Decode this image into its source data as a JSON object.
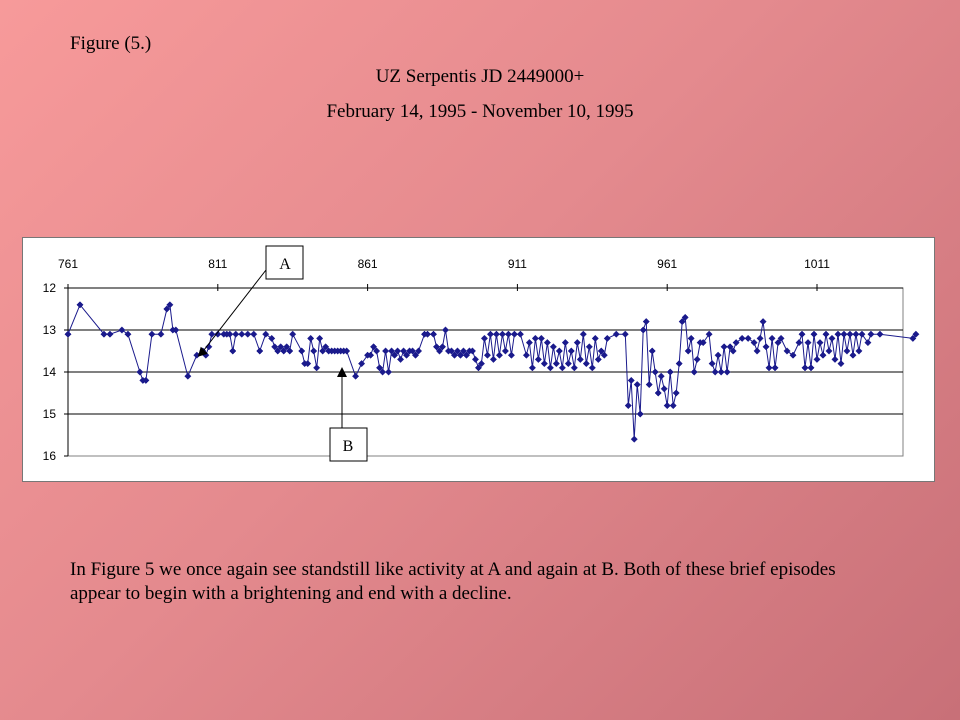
{
  "figure_label": "Figure (5.)",
  "title_line1": "UZ Serpentis JD 2449000+",
  "title_line2": "February 14, 1995 - November 10, 1995",
  "caption": "In Figure 5 we once again see standstill like activity at A and again at B. Both of these brief episodes appear to begin with a brightening and end with a decline.",
  "annotations": [
    {
      "label": "A",
      "points_to": {
        "x": 811,
        "y": 13.4
      }
    },
    {
      "label": "B",
      "points_to": {
        "x": 851,
        "y": 13.9
      }
    }
  ],
  "colors": {
    "series": "#1a1a8c",
    "background": "#f79a9a"
  },
  "chart_data": {
    "type": "scatter",
    "title": "UZ Serpentis JD 2449000+",
    "x_ticks": [
      761,
      811,
      861,
      911,
      961,
      1011
    ],
    "y_ticks": [
      12,
      13,
      14,
      15,
      16
    ],
    "xlim": [
      761,
      1031
    ],
    "ylim": [
      12,
      16
    ],
    "y_reversed": true,
    "grid": "horizontal",
    "x_axis_position": "top",
    "series": [
      {
        "marker": "diamond",
        "line": true,
        "points": [
          [
            761,
            13.1
          ],
          [
            765,
            12.4
          ],
          [
            773,
            13.1
          ],
          [
            775,
            13.1
          ],
          [
            779,
            13.0
          ],
          [
            781,
            13.1
          ],
          [
            785,
            14.0
          ],
          [
            786,
            14.2
          ],
          [
            787,
            14.2
          ],
          [
            789,
            13.1
          ],
          [
            792,
            13.1
          ],
          [
            794,
            12.5
          ],
          [
            795,
            12.4
          ],
          [
            796,
            13.0
          ],
          [
            797,
            13.0
          ],
          [
            801,
            14.1
          ],
          [
            804,
            13.6
          ],
          [
            806,
            13.5
          ],
          [
            807,
            13.6
          ],
          [
            808,
            13.4
          ],
          [
            809,
            13.1
          ],
          [
            811,
            13.1
          ],
          [
            813,
            13.1
          ],
          [
            814,
            13.1
          ],
          [
            815,
            13.1
          ],
          [
            816,
            13.5
          ],
          [
            817,
            13.1
          ],
          [
            819,
            13.1
          ],
          [
            821,
            13.1
          ],
          [
            823,
            13.1
          ],
          [
            825,
            13.5
          ],
          [
            827,
            13.1
          ],
          [
            829,
            13.2
          ],
          [
            830,
            13.4
          ],
          [
            831,
            13.5
          ],
          [
            832,
            13.4
          ],
          [
            833,
            13.5
          ],
          [
            834,
            13.4
          ],
          [
            835,
            13.5
          ],
          [
            836,
            13.1
          ],
          [
            839,
            13.5
          ],
          [
            840,
            13.8
          ],
          [
            841,
            13.8
          ],
          [
            842,
            13.2
          ],
          [
            843,
            13.5
          ],
          [
            844,
            13.9
          ],
          [
            845,
            13.2
          ],
          [
            846,
            13.5
          ],
          [
            847,
            13.4
          ],
          [
            848,
            13.5
          ],
          [
            849,
            13.5
          ],
          [
            850,
            13.5
          ],
          [
            851,
            13.5
          ],
          [
            852,
            13.5
          ],
          [
            853,
            13.5
          ],
          [
            854,
            13.5
          ],
          [
            857,
            14.1
          ],
          [
            859,
            13.8
          ],
          [
            861,
            13.6
          ],
          [
            862,
            13.6
          ],
          [
            863,
            13.4
          ],
          [
            864,
            13.5
          ],
          [
            865,
            13.9
          ],
          [
            866,
            14.0
          ],
          [
            867,
            13.5
          ],
          [
            868,
            14.0
          ],
          [
            869,
            13.5
          ],
          [
            870,
            13.6
          ],
          [
            871,
            13.5
          ],
          [
            872,
            13.7
          ],
          [
            873,
            13.5
          ],
          [
            874,
            13.6
          ],
          [
            875,
            13.5
          ],
          [
            876,
            13.5
          ],
          [
            877,
            13.6
          ],
          [
            878,
            13.5
          ],
          [
            880,
            13.1
          ],
          [
            881,
            13.1
          ],
          [
            883,
            13.1
          ],
          [
            884,
            13.4
          ],
          [
            885,
            13.5
          ],
          [
            886,
            13.4
          ],
          [
            887,
            13.0
          ],
          [
            888,
            13.5
          ],
          [
            889,
            13.5
          ],
          [
            890,
            13.6
          ],
          [
            891,
            13.5
          ],
          [
            892,
            13.6
          ],
          [
            893,
            13.5
          ],
          [
            894,
            13.6
          ],
          [
            895,
            13.5
          ],
          [
            896,
            13.5
          ],
          [
            897,
            13.7
          ],
          [
            898,
            13.9
          ],
          [
            899,
            13.8
          ],
          [
            900,
            13.2
          ],
          [
            901,
            13.6
          ],
          [
            902,
            13.1
          ],
          [
            903,
            13.7
          ],
          [
            904,
            13.1
          ],
          [
            905,
            13.6
          ],
          [
            906,
            13.1
          ],
          [
            907,
            13.5
          ],
          [
            908,
            13.1
          ],
          [
            909,
            13.6
          ],
          [
            910,
            13.1
          ],
          [
            912,
            13.1
          ],
          [
            914,
            13.6
          ],
          [
            915,
            13.3
          ],
          [
            916,
            13.9
          ],
          [
            917,
            13.2
          ],
          [
            918,
            13.7
          ],
          [
            919,
            13.2
          ],
          [
            920,
            13.8
          ],
          [
            921,
            13.3
          ],
          [
            922,
            13.9
          ],
          [
            923,
            13.4
          ],
          [
            924,
            13.8
          ],
          [
            925,
            13.5
          ],
          [
            926,
            13.9
          ],
          [
            927,
            13.3
          ],
          [
            928,
            13.8
          ],
          [
            929,
            13.5
          ],
          [
            930,
            13.9
          ],
          [
            931,
            13.3
          ],
          [
            932,
            13.7
          ],
          [
            933,
            13.1
          ],
          [
            934,
            13.8
          ],
          [
            935,
            13.4
          ],
          [
            936,
            13.9
          ],
          [
            937,
            13.2
          ],
          [
            938,
            13.7
          ],
          [
            939,
            13.5
          ],
          [
            940,
            13.6
          ],
          [
            941,
            13.2
          ],
          [
            944,
            13.1
          ],
          [
            947,
            13.1
          ],
          [
            948,
            14.8
          ],
          [
            949,
            14.2
          ],
          [
            950,
            15.6
          ],
          [
            951,
            14.3
          ],
          [
            952,
            15.0
          ],
          [
            953,
            13.0
          ],
          [
            954,
            12.8
          ],
          [
            955,
            14.3
          ],
          [
            956,
            13.5
          ],
          [
            957,
            14.0
          ],
          [
            958,
            14.5
          ],
          [
            959,
            14.1
          ],
          [
            960,
            14.4
          ],
          [
            961,
            14.8
          ],
          [
            962,
            14.0
          ],
          [
            963,
            14.8
          ],
          [
            964,
            14.5
          ],
          [
            965,
            13.8
          ],
          [
            966,
            12.8
          ],
          [
            967,
            12.7
          ],
          [
            968,
            13.5
          ],
          [
            969,
            13.2
          ],
          [
            970,
            14.0
          ],
          [
            971,
            13.7
          ],
          [
            972,
            13.3
          ],
          [
            973,
            13.3
          ],
          [
            975,
            13.1
          ],
          [
            976,
            13.8
          ],
          [
            977,
            14.0
          ],
          [
            978,
            13.6
          ],
          [
            979,
            14.0
          ],
          [
            980,
            13.4
          ],
          [
            981,
            14.0
          ],
          [
            982,
            13.4
          ],
          [
            983,
            13.5
          ],
          [
            984,
            13.3
          ],
          [
            986,
            13.2
          ],
          [
            988,
            13.2
          ],
          [
            990,
            13.3
          ],
          [
            991,
            13.5
          ],
          [
            992,
            13.2
          ],
          [
            993,
            12.8
          ],
          [
            994,
            13.4
          ],
          [
            995,
            13.9
          ],
          [
            996,
            13.2
          ],
          [
            997,
            13.9
          ],
          [
            998,
            13.3
          ],
          [
            999,
            13.2
          ],
          [
            1001,
            13.5
          ],
          [
            1003,
            13.6
          ],
          [
            1005,
            13.3
          ],
          [
            1006,
            13.1
          ],
          [
            1007,
            13.9
          ],
          [
            1008,
            13.3
          ],
          [
            1009,
            13.9
          ],
          [
            1010,
            13.1
          ],
          [
            1011,
            13.7
          ],
          [
            1012,
            13.3
          ],
          [
            1013,
            13.6
          ],
          [
            1014,
            13.1
          ],
          [
            1015,
            13.5
          ],
          [
            1016,
            13.2
          ],
          [
            1017,
            13.7
          ],
          [
            1018,
            13.1
          ],
          [
            1019,
            13.8
          ],
          [
            1020,
            13.1
          ],
          [
            1021,
            13.5
          ],
          [
            1022,
            13.1
          ],
          [
            1023,
            13.6
          ],
          [
            1024,
            13.1
          ],
          [
            1025,
            13.5
          ],
          [
            1026,
            13.1
          ],
          [
            1028,
            13.3
          ],
          [
            1029,
            13.1
          ],
          [
            1032,
            13.1
          ],
          [
            1043,
            13.2
          ],
          [
            1044,
            13.1
          ]
        ]
      }
    ]
  }
}
